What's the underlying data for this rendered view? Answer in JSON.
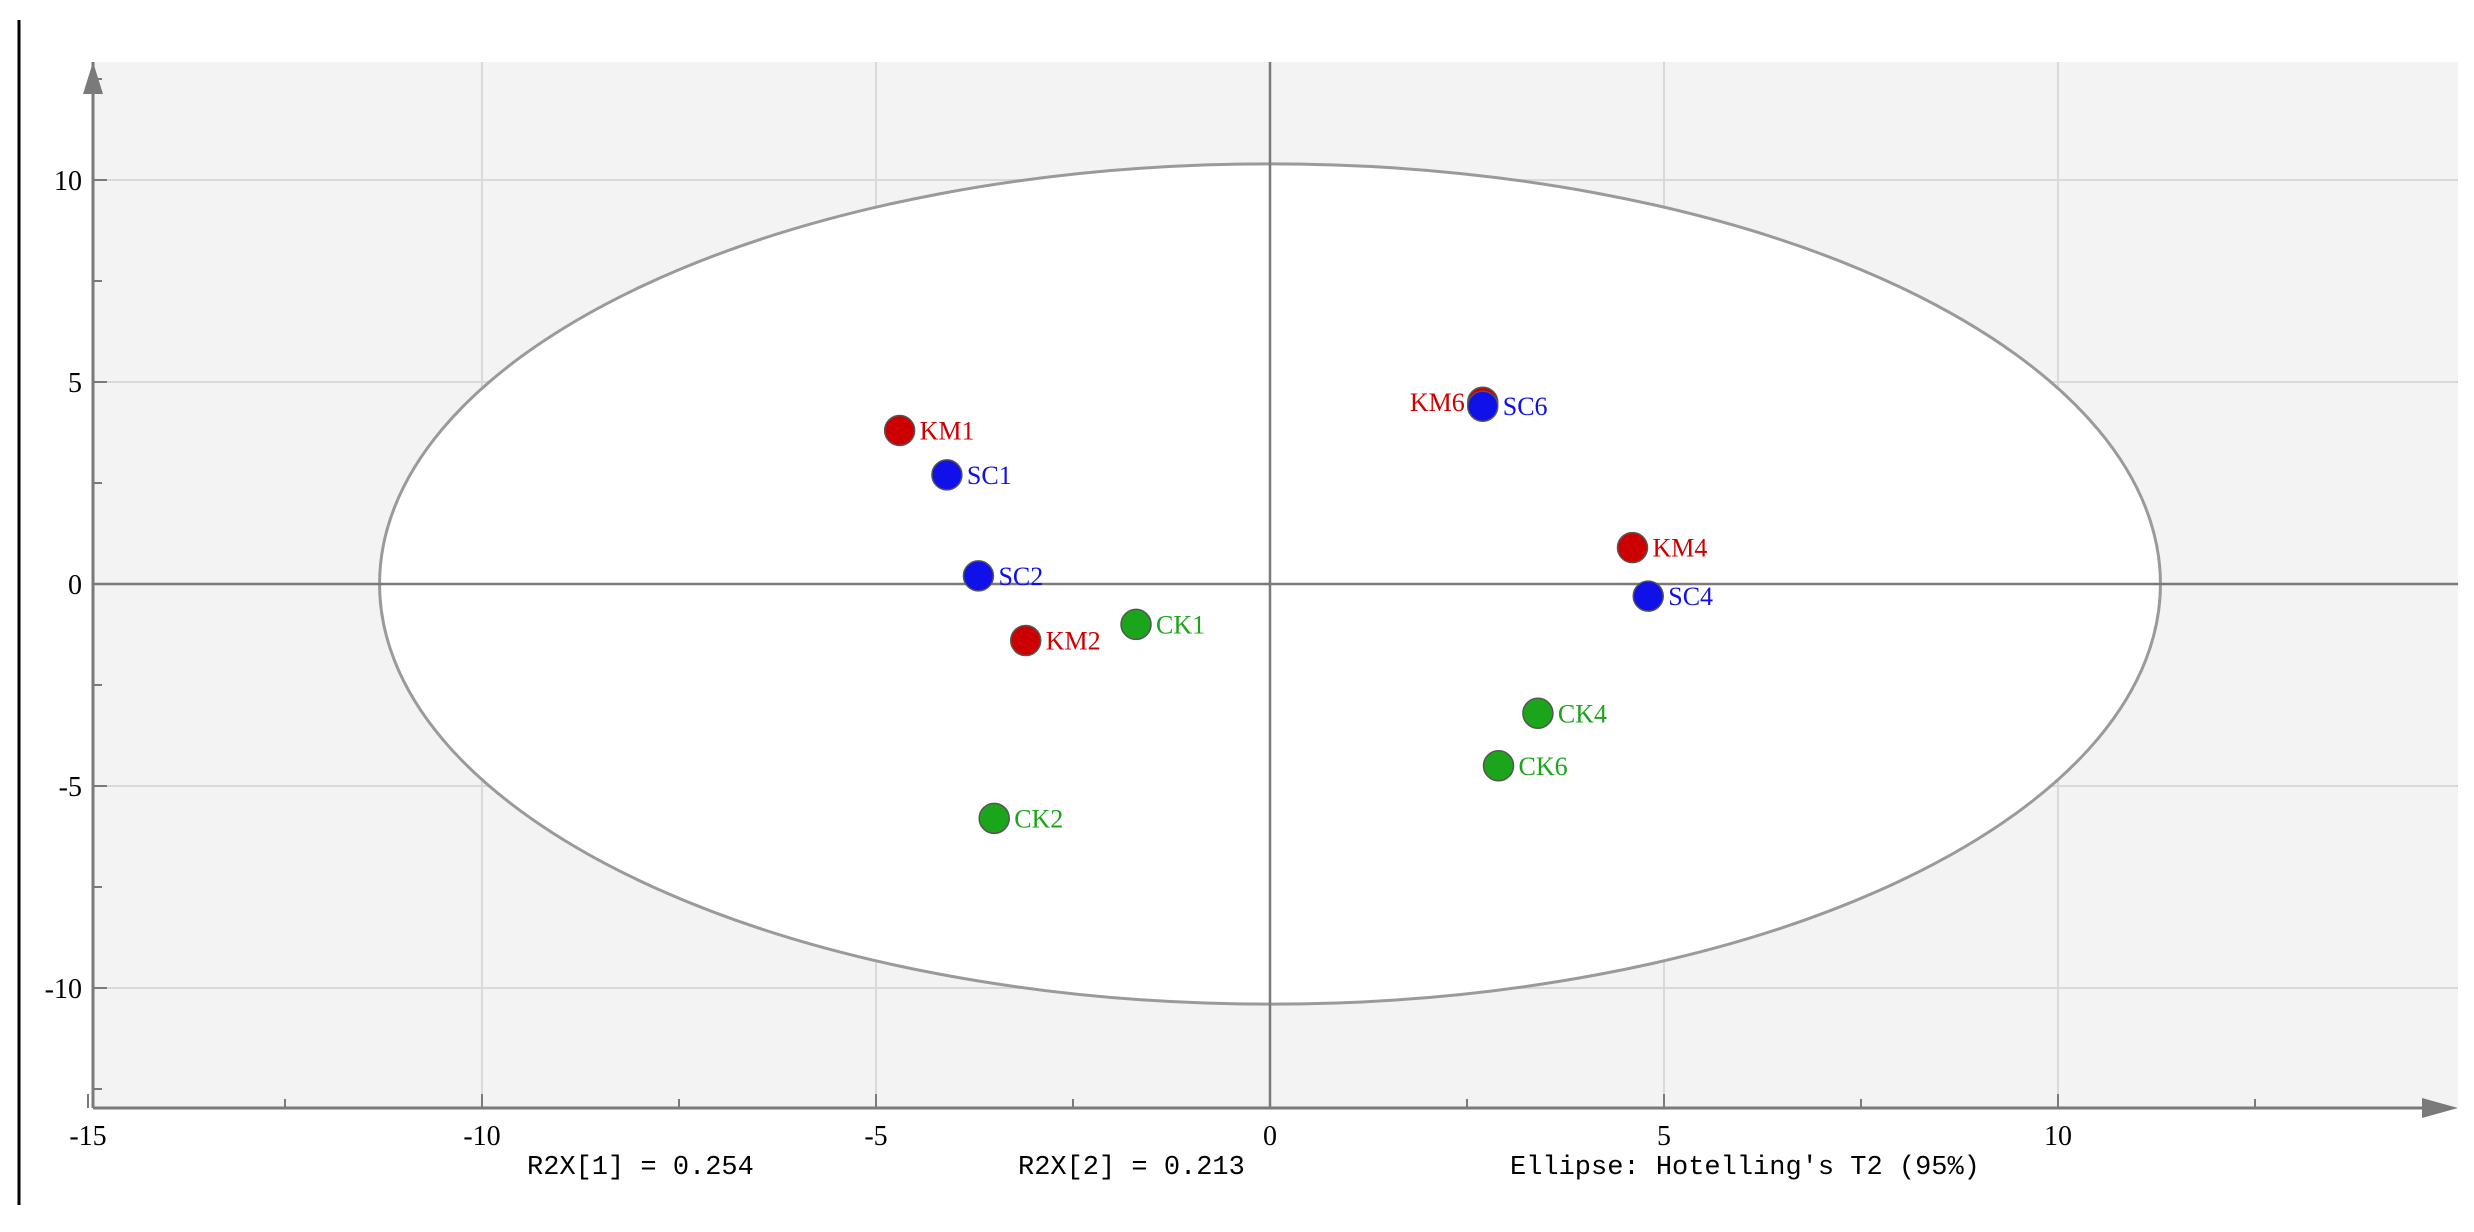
{
  "chart_data": {
    "type": "scatter",
    "title": "",
    "xlabel": "",
    "ylabel": "",
    "xlim": [
      -15,
      15
    ],
    "ylim": [
      -13,
      13
    ],
    "grid": true,
    "x_ticks": [
      -15,
      -10,
      -5,
      0,
      5,
      10
    ],
    "y_ticks": [
      -10,
      -5,
      0,
      5,
      10
    ],
    "x_tick_labels": [
      "-15",
      "-10",
      "-5",
      "0",
      "5",
      "10"
    ],
    "y_tick_labels": [
      "-10",
      "-5",
      "0",
      "5",
      "10"
    ],
    "ellipse": {
      "center": [
        0,
        0
      ],
      "rx": 11.3,
      "ry": 10.4,
      "label": "Ellipse: Hotelling's T2 (95%)"
    },
    "footer": {
      "r2x1": "R2X[1] = 0.254",
      "r2x2": "R2X[2] = 0.213",
      "ellipse_note": "Ellipse: Hotelling's T2 (95%)"
    },
    "colors": {
      "CK": "#1aa51a",
      "KM": "#cc0000",
      "SC": "#1010e8",
      "background": "#f3f3f3",
      "grid": "#d9d9d9"
    },
    "series": [
      {
        "group": "CK",
        "points": [
          {
            "label": "CK1",
            "x": -1.7,
            "y": -1.0
          },
          {
            "label": "CK2",
            "x": -3.5,
            "y": -5.8
          },
          {
            "label": "CK4",
            "x": 3.4,
            "y": -3.2
          },
          {
            "label": "CK6",
            "x": 2.9,
            "y": -4.5
          }
        ]
      },
      {
        "group": "KM",
        "points": [
          {
            "label": "KM1",
            "x": -4.7,
            "y": 3.8
          },
          {
            "label": "KM2",
            "x": -3.1,
            "y": -1.4
          },
          {
            "label": "KM4",
            "x": 4.6,
            "y": 0.9
          },
          {
            "label": "KM6",
            "x": 2.7,
            "y": 4.5
          }
        ]
      },
      {
        "group": "SC",
        "points": [
          {
            "label": "SC1",
            "x": -4.1,
            "y": 2.7
          },
          {
            "label": "SC2",
            "x": -3.7,
            "y": 0.2
          },
          {
            "label": "SC4",
            "x": 4.8,
            "y": -0.3
          },
          {
            "label": "SC6",
            "x": 2.7,
            "y": 4.4
          }
        ]
      }
    ]
  }
}
